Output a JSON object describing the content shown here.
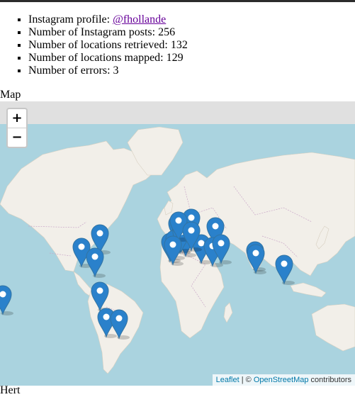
{
  "stats": {
    "profile_label": "Instagram profile: ",
    "profile_handle": "@fhollande",
    "posts_label": "Number of Instagram posts: 256",
    "retrieved_label": "Number of locations retrieved: 132",
    "mapped_label": "Number of locations mapped: 129",
    "errors_label": "Number of errors: 3"
  },
  "map": {
    "heading": "Map",
    "zoom_in": "+",
    "zoom_out": "−",
    "attribution": {
      "leaflet": "Leaflet",
      "sep": " | © ",
      "osm": "OpenStreetMap",
      "suffix": " contributors"
    },
    "colors": {
      "water": "#aad3df",
      "land": "#f2efe9",
      "ice": "#ffffff",
      "marker": "#2a81cb",
      "marker_dark": "#3274a3",
      "border": "#c9a6c7"
    },
    "icon": "map-marker-icon"
  },
  "footer": {
    "text": "Hert"
  }
}
